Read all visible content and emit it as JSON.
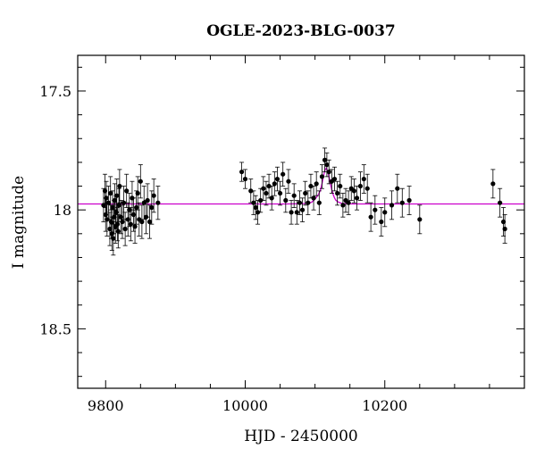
{
  "chart_data": {
    "type": "scatter",
    "title": "OGLE-2023-BLG-0037",
    "xlabel": "HJD - 2450000",
    "ylabel": "I magnitude",
    "xlim": [
      9760,
      10400
    ],
    "ylim": [
      18.75,
      17.35
    ],
    "y_inverted": true,
    "grid": false,
    "x_ticks": [
      9800,
      10000,
      10200
    ],
    "x_tick_labels": [
      "9800",
      "10000",
      "10200"
    ],
    "y_ticks": [
      17.5,
      18,
      18.5
    ],
    "y_tick_labels": [
      "17.5",
      "18",
      "18.5"
    ],
    "colors": {
      "points": "#000000",
      "model": "#cc00cc",
      "frame": "#000000"
    },
    "series": [
      {
        "type": "errorbar-scatter",
        "x": [
          9797,
          9799,
          9800,
          9801,
          9802,
          9804,
          9806,
          9807,
          9808,
          9809,
          9810,
          9811,
          9812,
          9813,
          9814,
          9815,
          9816,
          9817,
          9818,
          9819,
          9820,
          9822,
          9824,
          9826,
          9828,
          9830,
          9832,
          9834,
          9836,
          9838,
          9840,
          9842,
          9844,
          9846,
          9848,
          9850,
          9852,
          9855,
          9858,
          9860,
          9863,
          9866,
          9869,
          9875,
          9995,
          10000,
          10008,
          10012,
          10015,
          10018,
          10022,
          10026,
          10030,
          10034,
          10038,
          10042,
          10046,
          10050,
          10054,
          10058,
          10062,
          10066,
          10070,
          10074,
          10078,
          10082,
          10086,
          10090,
          10094,
          10098,
          10102,
          10106,
          10110,
          10114,
          10117,
          10120,
          10124,
          10128,
          10132,
          10136,
          10140,
          10144,
          10148,
          10152,
          10156,
          10160,
          10165,
          10170,
          10175,
          10180,
          10186,
          10195,
          10200,
          10210,
          10218,
          10225,
          10235,
          10250,
          10355,
          10365,
          10370,
          10372
        ],
        "y": [
          17.98,
          17.92,
          18.02,
          17.95,
          18.04,
          17.97,
          18.08,
          17.93,
          18.05,
          18.1,
          17.99,
          18.12,
          18.03,
          17.96,
          18.07,
          18.01,
          17.94,
          18.06,
          18.09,
          17.98,
          17.9,
          18.03,
          18.05,
          17.97,
          18.08,
          17.92,
          18.04,
          18.0,
          18.06,
          17.95,
          18.02,
          18.07,
          17.99,
          17.93,
          18.04,
          17.88,
          18.05,
          17.97,
          18.03,
          17.96,
          18.05,
          17.99,
          17.94,
          17.97,
          17.84,
          17.87,
          17.92,
          17.97,
          17.99,
          18.01,
          17.96,
          17.91,
          17.93,
          17.9,
          17.95,
          17.89,
          17.87,
          17.93,
          17.85,
          17.96,
          17.88,
          18.01,
          17.94,
          18.01,
          17.97,
          18.0,
          17.93,
          17.97,
          17.9,
          17.95,
          17.89,
          17.97,
          17.86,
          17.79,
          17.81,
          17.84,
          17.88,
          17.87,
          17.93,
          17.9,
          17.98,
          17.96,
          17.97,
          17.91,
          17.92,
          17.95,
          17.9,
          17.87,
          17.91,
          18.03,
          18.0,
          18.05,
          18.01,
          17.98,
          17.91,
          17.97,
          17.96,
          18.04,
          17.89,
          17.97,
          18.05,
          18.08
        ],
        "yerr": [
          0.07,
          0.07,
          0.07,
          0.07,
          0.07,
          0.07,
          0.07,
          0.07,
          0.07,
          0.07,
          0.07,
          0.07,
          0.07,
          0.07,
          0.07,
          0.07,
          0.07,
          0.07,
          0.07,
          0.07,
          0.07,
          0.07,
          0.07,
          0.07,
          0.07,
          0.07,
          0.07,
          0.07,
          0.07,
          0.07,
          0.07,
          0.07,
          0.07,
          0.07,
          0.07,
          0.07,
          0.07,
          0.07,
          0.07,
          0.07,
          0.07,
          0.07,
          0.07,
          0.07,
          0.04,
          0.04,
          0.05,
          0.05,
          0.05,
          0.05,
          0.05,
          0.05,
          0.05,
          0.05,
          0.05,
          0.05,
          0.05,
          0.05,
          0.05,
          0.05,
          0.05,
          0.05,
          0.05,
          0.05,
          0.05,
          0.05,
          0.05,
          0.05,
          0.05,
          0.05,
          0.05,
          0.05,
          0.05,
          0.05,
          0.05,
          0.05,
          0.05,
          0.05,
          0.05,
          0.05,
          0.05,
          0.05,
          0.05,
          0.05,
          0.05,
          0.05,
          0.06,
          0.06,
          0.06,
          0.06,
          0.06,
          0.06,
          0.06,
          0.06,
          0.06,
          0.06,
          0.06,
          0.06,
          0.06,
          0.06,
          0.06,
          0.06
        ]
      },
      {
        "type": "model-line",
        "x": [
          9760,
          10060,
          10080,
          10090,
          10095,
          10100,
          10105,
          10108,
          10110,
          10112,
          10114,
          10116,
          10118,
          10120,
          10122,
          10124,
          10126,
          10128,
          10130,
          10134,
          10138,
          10145,
          10155,
          10170,
          10400
        ],
        "y": [
          17.975,
          17.975,
          17.974,
          17.972,
          17.968,
          17.955,
          17.935,
          17.915,
          17.89,
          17.86,
          17.835,
          17.825,
          17.835,
          17.86,
          17.89,
          17.915,
          17.935,
          17.95,
          17.96,
          17.968,
          17.972,
          17.974,
          17.975,
          17.975,
          17.975
        ]
      }
    ]
  }
}
